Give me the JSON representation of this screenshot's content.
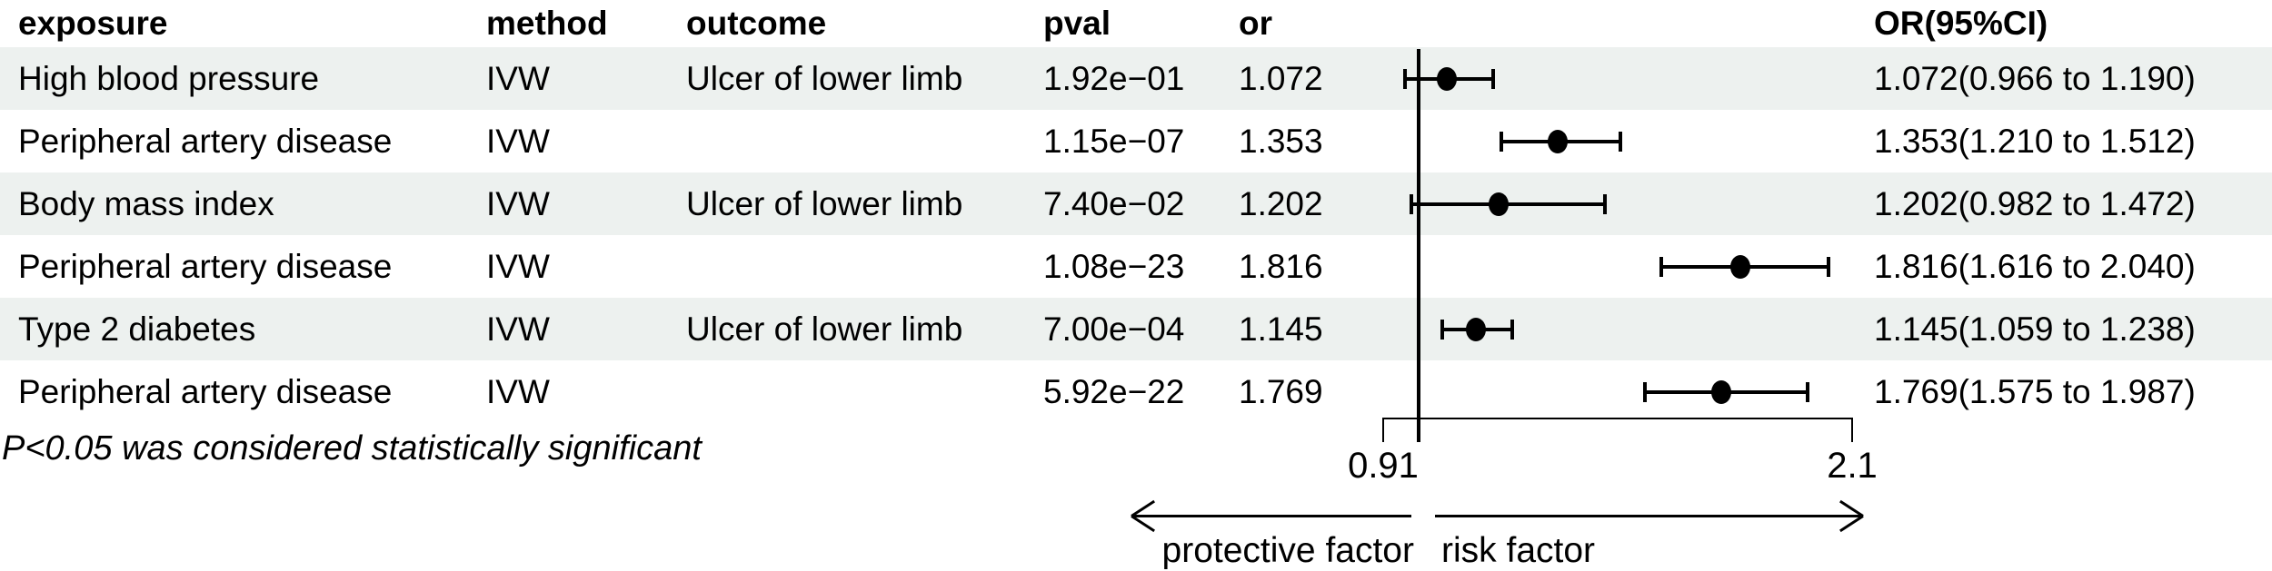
{
  "chart_data": {
    "type": "forest",
    "title": "",
    "columns": [
      "exposure",
      "method",
      "outcome",
      "pval",
      "or",
      "OR(95%CI)"
    ],
    "rows": [
      {
        "exposure": "High blood pressure",
        "method": "IVW",
        "outcome": "Ulcer of lower limb",
        "pval": "1.92e−01",
        "or_label": "1.072",
        "est": 1.072,
        "lo": 0.966,
        "hi": 1.19,
        "ci_label": "1.072(0.966 to 1.190)"
      },
      {
        "exposure": "Peripheral artery disease",
        "method": "IVW",
        "outcome": "",
        "pval": "1.15e−07",
        "or_label": "1.353",
        "est": 1.353,
        "lo": 1.21,
        "hi": 1.512,
        "ci_label": "1.353(1.210 to 1.512)"
      },
      {
        "exposure": "Body mass index",
        "method": "IVW",
        "outcome": "Ulcer of lower limb",
        "pval": "7.40e−02",
        "or_label": "1.202",
        "est": 1.202,
        "lo": 0.982,
        "hi": 1.472,
        "ci_label": "1.202(0.982 to 1.472)"
      },
      {
        "exposure": "Peripheral artery disease",
        "method": "IVW",
        "outcome": "",
        "pval": "1.08e−23",
        "or_label": "1.816",
        "est": 1.816,
        "lo": 1.616,
        "hi": 2.04,
        "ci_label": "1.816(1.616 to 2.040)"
      },
      {
        "exposure": "Type 2 diabetes",
        "method": "IVW",
        "outcome": "Ulcer of lower limb",
        "pval": "7.00e−04",
        "or_label": "1.145",
        "est": 1.145,
        "lo": 1.059,
        "hi": 1.238,
        "ci_label": "1.145(1.059 to 1.238)"
      },
      {
        "exposure": "Peripheral artery disease",
        "method": "IVW",
        "outcome": "",
        "pval": "5.92e−22",
        "or_label": "1.769",
        "est": 1.769,
        "lo": 1.575,
        "hi": 1.987,
        "ci_label": "1.769(1.575 to 1.987)"
      }
    ],
    "x_axis": {
      "min": 0.91,
      "max": 2.1,
      "reference": 1.0,
      "ticks": [
        0.91,
        2.1
      ],
      "tick_labels": [
        "0.91",
        "2.1"
      ]
    },
    "direction_labels": {
      "left_arrow": "protective factor",
      "right_arrow": "risk factor"
    },
    "footnote": "P<0.05 was considered statistically significant",
    "styles": {
      "stripe_color": "#edf1ef",
      "ink_color": "#000000"
    }
  }
}
